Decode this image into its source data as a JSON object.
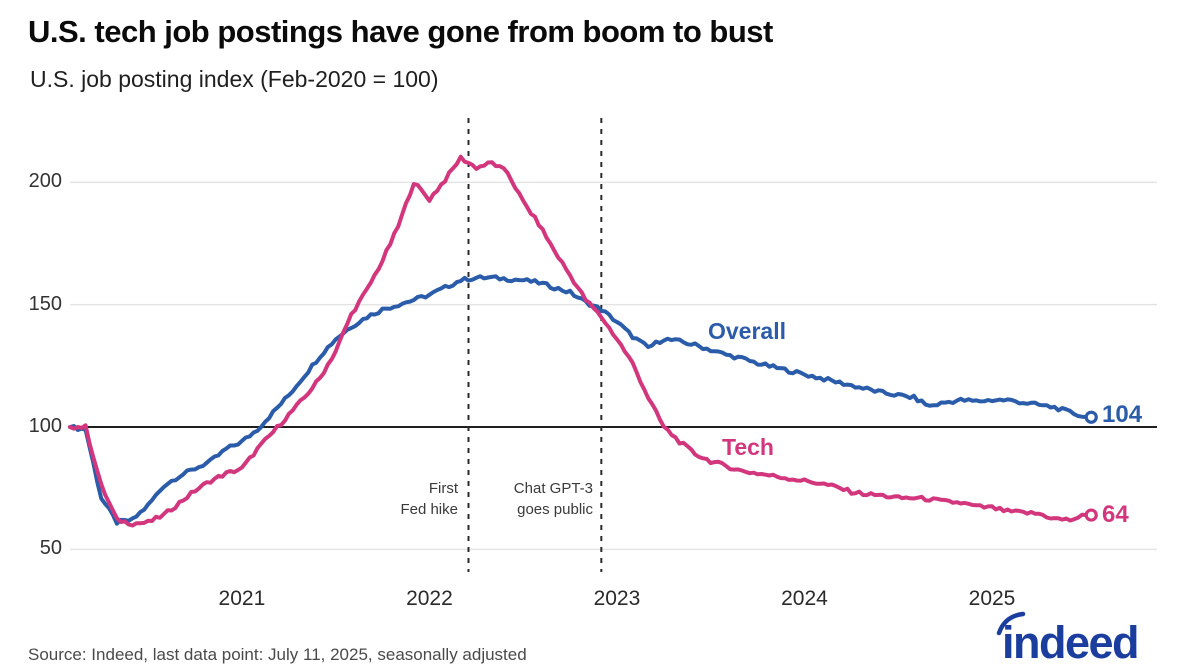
{
  "header": {
    "title": "U.S. tech job postings have gone from boom to bust",
    "subtitle": "U.S. job posting index (Feb-2020 = 100)"
  },
  "footer": {
    "source": "Source: Indeed, last data point: July 11, 2025, seasonally adjusted",
    "logo_text": "indeed"
  },
  "chart_data": {
    "type": "line",
    "title": "U.S. tech job postings have gone from boom to bust",
    "subtitle": "U.S. job posting index (Feb-2020 = 100)",
    "x_start": "2020-02",
    "x_end": "2025-07",
    "x_end_exact": "2025-07-11",
    "sampling": "monthly estimates read from plot",
    "baseline_value": 100,
    "ylim": [
      45,
      218
    ],
    "yticks": [
      50,
      100,
      150,
      200
    ],
    "xticks": [
      "2021",
      "2022",
      "2023",
      "2024",
      "2025"
    ],
    "grid": "horizontal",
    "legend": "inline-labels",
    "colors": {
      "overall": "#2a5caa",
      "tech": "#d2377e",
      "gridline": "#e4e4e4",
      "baseline": "#1f1f1f",
      "event_line": "#2b2b2b",
      "logo_blue": "#1b3d9e"
    },
    "series": [
      {
        "name": "Overall",
        "color": "#2a5caa",
        "end_label": "104",
        "end_value": 104,
        "values": [
          100,
          99,
          71,
          61,
          62,
          68,
          76,
          80,
          83,
          86,
          91,
          94,
          99,
          106,
          113,
          121,
          129,
          136,
          141,
          145,
          148,
          150,
          152,
          154,
          157,
          160,
          161,
          161,
          160.5,
          160,
          159,
          157,
          155,
          151,
          148,
          143,
          137,
          132.5,
          136,
          135,
          133.5,
          131.5,
          129.5,
          128,
          126,
          124.5,
          123,
          121.5,
          120,
          118.5,
          117,
          115.5,
          114,
          113,
          112,
          108.5,
          110,
          111,
          110.5,
          111,
          111,
          110,
          109,
          108,
          106,
          104
        ]
      },
      {
        "name": "Tech",
        "color": "#d2377e",
        "end_label": "64",
        "end_value": 64,
        "values": [
          100,
          100,
          76,
          62,
          60.5,
          61,
          64,
          69,
          74,
          78,
          81,
          83,
          91,
          98,
          105,
          112,
          120,
          131,
          146,
          156,
          168,
          182,
          200,
          193,
          201,
          210,
          206,
          208,
          204,
          192,
          183,
          172,
          162,
          152,
          145,
          136,
          126,
          112,
          100,
          94,
          89,
          86,
          84,
          82,
          81,
          80,
          79,
          78,
          77,
          75.5,
          73.5,
          72.5,
          72,
          71,
          71,
          70.5,
          69.5,
          69,
          67.5,
          67,
          65.5,
          65,
          64.5,
          62.5,
          62,
          64
        ]
      }
    ],
    "annotations": [
      {
        "lines": [
          "First",
          "Fed hike"
        ],
        "date": "2022-03",
        "x_month_index": 25.5
      },
      {
        "lines": [
          "Chat GPT-3",
          "goes public"
        ],
        "date": "2022-12",
        "x_month_index": 34
      }
    ]
  }
}
